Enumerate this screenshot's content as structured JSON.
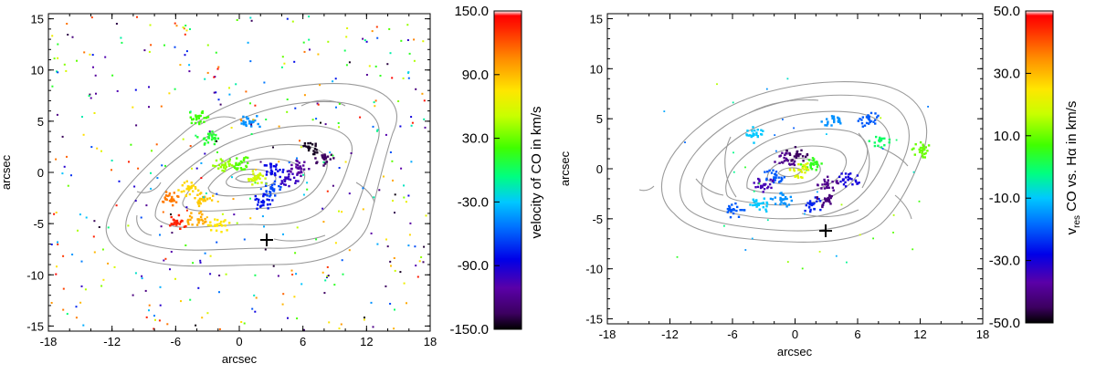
{
  "chart_data": [
    {
      "type": "scatter",
      "title": "",
      "xlabel": "arcsec",
      "ylabel": "arcsec",
      "xlim": [
        -18,
        18
      ],
      "ylim": [
        -15.5,
        15.5
      ],
      "xticks": [
        "-18",
        "-12",
        "-6",
        "0",
        "6",
        "12",
        "18"
      ],
      "yticks": [
        "15",
        "10",
        "5",
        "0",
        "-5",
        "-10",
        "-15"
      ],
      "marker": {
        "x": 2.8,
        "y": -6.5,
        "symbol": "+"
      },
      "colorbar": {
        "label": "velocity of CO in km/s",
        "range": [
          -150,
          150
        ],
        "ticks": [
          "150.0",
          "90.0",
          "30.0",
          "-30.0",
          "-90.0",
          "-150.0"
        ],
        "colormap": "rainbow"
      },
      "contours": "grey isophotal contours of an inclined galaxy disk",
      "clumps": [
        {
          "x": 0.0,
          "y": 1.0,
          "v": 25
        },
        {
          "x": -1.5,
          "y": 0.8,
          "v": 40
        },
        {
          "x": 1.5,
          "y": -0.5,
          "v": 55
        },
        {
          "x": -3.5,
          "y": -2.5,
          "v": 85
        },
        {
          "x": -5.0,
          "y": -1.5,
          "v": 80
        },
        {
          "x": -6.5,
          "y": -2.5,
          "v": 110
        },
        {
          "x": -4.0,
          "y": -4.5,
          "v": 95
        },
        {
          "x": -6.0,
          "y": -4.8,
          "v": 135
        },
        {
          "x": -2.0,
          "y": -5.0,
          "v": 75
        },
        {
          "x": -3.0,
          "y": 3.5,
          "v": 10
        },
        {
          "x": -4.0,
          "y": 5.5,
          "v": 20
        },
        {
          "x": 3.0,
          "y": 0.2,
          "v": -85
        },
        {
          "x": 4.5,
          "y": -0.5,
          "v": -100
        },
        {
          "x": 5.5,
          "y": 0.5,
          "v": -115
        },
        {
          "x": 6.5,
          "y": 2.5,
          "v": -145
        },
        {
          "x": 8.0,
          "y": 1.5,
          "v": -135
        },
        {
          "x": 3.0,
          "y": -1.5,
          "v": -65
        },
        {
          "x": 2.0,
          "y": -2.8,
          "v": -80
        },
        {
          "x": 1.0,
          "y": 5.0,
          "v": -45
        }
      ]
    },
    {
      "type": "scatter",
      "title": "",
      "xlabel": "arcsec",
      "ylabel": "arcsec",
      "xlim": [
        -18,
        18
      ],
      "ylim": [
        -15.5,
        15.5
      ],
      "xticks": [
        "-18",
        "-12",
        "-6",
        "0",
        "6",
        "12",
        "18"
      ],
      "yticks": [
        "15",
        "10",
        "5",
        "0",
        "-5",
        "-10",
        "-15"
      ],
      "marker": {
        "x": 3.0,
        "y": -6.0,
        "symbol": "+"
      },
      "colorbar": {
        "label_parts": [
          "v",
          "res",
          " CO vs. Hα in km/s"
        ],
        "range": [
          -50,
          50
        ],
        "ticks": [
          "50.0",
          "30.0",
          "10.0",
          "-10.0",
          "-30.0",
          "-50.0"
        ],
        "colormap": "rainbow"
      },
      "contours": "grey isophotal contours of an inclined spiral galaxy",
      "clumps": [
        {
          "x": -1.0,
          "y": 1.0,
          "v": -40
        },
        {
          "x": 0.0,
          "y": 1.5,
          "v": -45
        },
        {
          "x": 1.5,
          "y": 0.5,
          "v": 5
        },
        {
          "x": 0.5,
          "y": 0.0,
          "v": 20
        },
        {
          "x": -2.0,
          "y": -0.5,
          "v": -20
        },
        {
          "x": -3.0,
          "y": -1.5,
          "v": -35
        },
        {
          "x": 3.0,
          "y": -1.5,
          "v": -40
        },
        {
          "x": 5.0,
          "y": -1.0,
          "v": -30
        },
        {
          "x": 1.5,
          "y": -3.5,
          "v": -25
        },
        {
          "x": -1.5,
          "y": -3.0,
          "v": -15
        },
        {
          "x": -3.5,
          "y": -3.5,
          "v": -10
        },
        {
          "x": -6.0,
          "y": -4.0,
          "v": -20
        },
        {
          "x": -4.0,
          "y": 3.5,
          "v": -10
        },
        {
          "x": 3.5,
          "y": 5.0,
          "v": -15
        },
        {
          "x": 7.0,
          "y": 5.0,
          "v": -20
        },
        {
          "x": 8.0,
          "y": 3.0,
          "v": 0
        },
        {
          "x": 12.0,
          "y": 2.0,
          "v": 10
        },
        {
          "x": 3.0,
          "y": -3.0,
          "v": -42
        }
      ]
    }
  ]
}
